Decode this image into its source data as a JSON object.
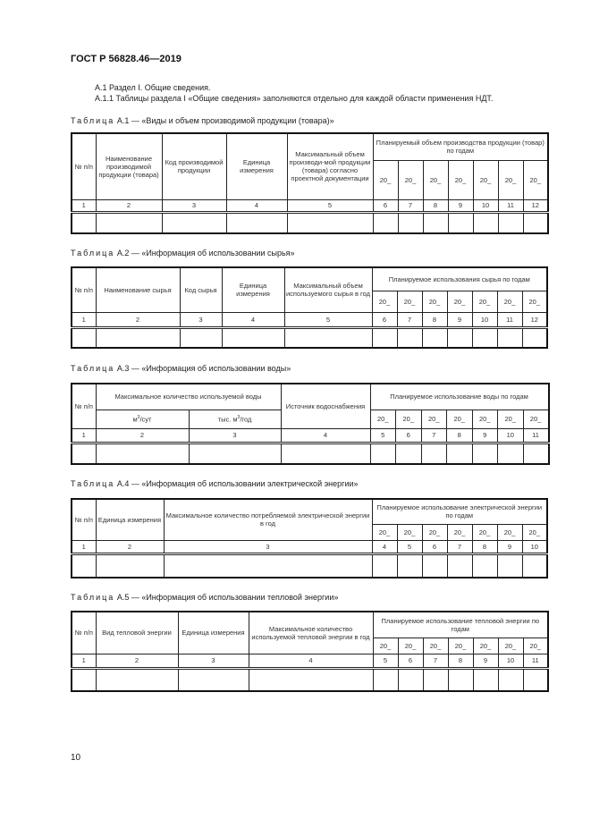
{
  "header": {
    "doc_title": "ГОСТ Р 56828.46—2019"
  },
  "intro": [
    "А.1 Раздел I. Общие сведения.",
    "А.1.1 Таблицы раздела I «Общие сведения» заполняются отдельно для каждой области применения НДТ."
  ],
  "caption_word": "Таблица",
  "year": "20_",
  "t1": {
    "caption": "А.1 — «Виды и объем производимой продукции (товара)»",
    "h": [
      "№ п/п",
      "Наименование производимой продукции (товара)",
      "Код производимой продукции",
      "Единица измерения",
      "Максимальный объем производи-мой продукции (товара) согласно проектной документации",
      "Планируемый объем производства продукции (товар) по годам"
    ],
    "nums": [
      "1",
      "2",
      "3",
      "4",
      "5",
      "6",
      "7",
      "8",
      "9",
      "10",
      "11",
      "12"
    ]
  },
  "t2": {
    "caption": "А.2 — «Информация об использовании сырья»",
    "h": [
      "№ п/п",
      "Наименование сырья",
      "Код сырья",
      "Единица измерения",
      "Максимальный объем используемого сырья в год",
      "Планируемое использования сырья по годам"
    ],
    "nums": [
      "1",
      "2",
      "3",
      "4",
      "5",
      "6",
      "7",
      "8",
      "9",
      "10",
      "11",
      "12"
    ]
  },
  "t3": {
    "caption": "А.3 — «Информация об использовании воды»",
    "h": [
      "№ п/п",
      "Максимальное количество используемой воды",
      "м",
      "/сут",
      "тыс. м",
      "/год",
      "Источник водоснабжения",
      "Планируемое использование воды по годам"
    ],
    "sup": "3",
    "nums": [
      "1",
      "2",
      "3",
      "4",
      "5",
      "6",
      "7",
      "8",
      "9",
      "10",
      "11"
    ]
  },
  "t4": {
    "caption": "А.4 — «Информация об использовании электрической энергии»",
    "h": [
      "№ п/п",
      "Единица измерения",
      "Максимальное количество потребляемой электрической энергии в год",
      "Планируемое использование электрической энергии по годам"
    ],
    "nums": [
      "1",
      "2",
      "3",
      "4",
      "5",
      "6",
      "7",
      "8",
      "9",
      "10"
    ]
  },
  "t5": {
    "caption": "А.5 — «Информация об использовании тепловой энергии»",
    "h": [
      "№ п/п",
      "Вид тепловой энергии",
      "Единица измерения",
      "Максимальное количество используемой тепловой энергии в год",
      "Планируемое использование тепловой энергии по годам"
    ],
    "nums": [
      "1",
      "2",
      "3",
      "4",
      "5",
      "6",
      "7",
      "8",
      "9",
      "10",
      "11"
    ]
  },
  "footer": {
    "page_number": "10"
  }
}
